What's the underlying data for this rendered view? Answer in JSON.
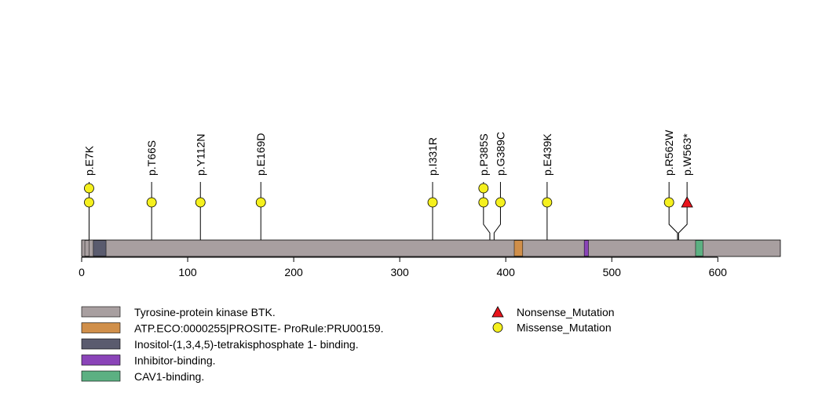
{
  "protein": {
    "length": 659,
    "base_color": "#a89fa0"
  },
  "domains": [
    {
      "name": "Tyrosine-protein kinase BTK.",
      "start": 3,
      "end": 7,
      "color": "#a89fa0"
    },
    {
      "name": "Inositol-(1,3,4,5)-tetrakisphosphate 1- binding.",
      "start": 11,
      "end": 23,
      "color": "#5a5b6e"
    },
    {
      "name": "ATP.ECO:0000255|PROSITE- ProRule:PRU00159.",
      "start": 408,
      "end": 416,
      "color": "#d08f4a"
    },
    {
      "name": "Inhibitor-binding.",
      "start": 474,
      "end": 478,
      "color": "#8a44b8"
    },
    {
      "name": "CAV1-binding.",
      "start": 579,
      "end": 586,
      "color": "#5cb082"
    }
  ],
  "axis": {
    "ticks": [
      0,
      100,
      200,
      300,
      400,
      500,
      600
    ]
  },
  "mutations": [
    {
      "label": "p.E7K",
      "position": 7,
      "marker_x": 7,
      "count": 2,
      "type": "Missense_Mutation"
    },
    {
      "label": "p.T66S",
      "position": 66,
      "marker_x": 66,
      "count": 1,
      "type": "Missense_Mutation"
    },
    {
      "label": "p.Y112N",
      "position": 112,
      "marker_x": 112,
      "count": 1,
      "type": "Missense_Mutation"
    },
    {
      "label": "p.E169D",
      "position": 169,
      "marker_x": 169,
      "count": 1,
      "type": "Missense_Mutation"
    },
    {
      "label": "p.I331R",
      "position": 331,
      "marker_x": 331,
      "count": 1,
      "type": "Missense_Mutation"
    },
    {
      "label": "p.P385S",
      "position": 385,
      "marker_x": 379,
      "count": 2,
      "type": "Missense_Mutation"
    },
    {
      "label": "p.G389C",
      "position": 389,
      "marker_x": 395,
      "count": 1,
      "type": "Missense_Mutation"
    },
    {
      "label": "p.E439K",
      "position": 439,
      "marker_x": 439,
      "count": 1,
      "type": "Missense_Mutation"
    },
    {
      "label": "p.R562W",
      "position": 562,
      "marker_x": 554,
      "count": 1,
      "type": "Missense_Mutation"
    },
    {
      "label": "p.W563*",
      "position": 563,
      "marker_x": 571,
      "count": 1,
      "type": "Nonsense_Mutation"
    }
  ],
  "legend": {
    "domains": [
      {
        "label": "Tyrosine-protein kinase BTK.",
        "color": "#a89fa0"
      },
      {
        "label": "ATP.ECO:0000255|PROSITE- ProRule:PRU00159.",
        "color": "#d08f4a"
      },
      {
        "label": "Inositol-(1,3,4,5)-tetrakisphosphate 1- binding.",
        "color": "#5a5b6e"
      },
      {
        "label": "Inhibitor-binding.",
        "color": "#8a44b8"
      },
      {
        "label": "CAV1-binding.",
        "color": "#5cb082"
      }
    ],
    "mutation_types": [
      {
        "label": "Nonsense_Mutation",
        "shape": "triangle",
        "color": "#e8141c"
      },
      {
        "label": "Missense_Mutation",
        "shape": "circle",
        "color": "#f5f01e"
      }
    ]
  }
}
